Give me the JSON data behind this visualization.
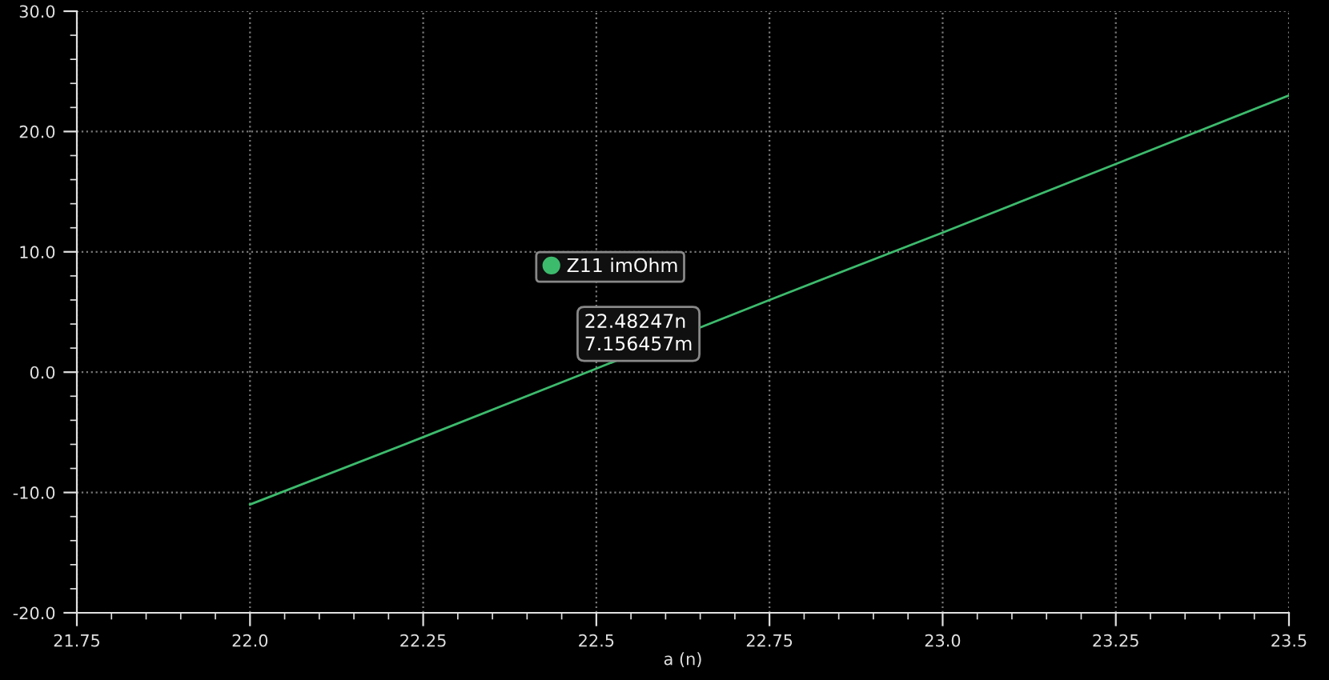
{
  "chart_data": {
    "type": "line",
    "xlabel": "a (n)",
    "x": [
      22.0,
      22.25,
      22.5,
      22.75,
      23.0,
      23.25,
      23.5
    ],
    "series": [
      {
        "name": "Z11 imOhm",
        "color": "#3dbb6d",
        "values": [
          -11.0,
          -5.4,
          0.3,
          6.0,
          11.6,
          17.3,
          23.0
        ]
      }
    ],
    "xlim": [
      21.75,
      23.5
    ],
    "xticks": [
      {
        "value": 21.75,
        "label": "21.75"
      },
      {
        "value": 22.0,
        "label": "22.0"
      },
      {
        "value": 22.25,
        "label": "22.25"
      },
      {
        "value": 22.5,
        "label": "22.5"
      },
      {
        "value": 22.75,
        "label": "22.75"
      },
      {
        "value": 23.0,
        "label": "23.0"
      },
      {
        "value": 23.25,
        "label": "23.25"
      },
      {
        "value": 23.5,
        "label": "23.5"
      }
    ],
    "ylim": [
      -20,
      30
    ],
    "yticks": [
      {
        "value": -20,
        "label": "-20.0"
      },
      {
        "value": -10,
        "label": "-10.0"
      },
      {
        "value": 0,
        "label": "0.0"
      },
      {
        "value": 10,
        "label": "10.0"
      },
      {
        "value": 20,
        "label": "20.0"
      },
      {
        "value": 30,
        "label": "30.0"
      }
    ],
    "grid": true,
    "legend": "center",
    "marker": "none",
    "line_style": "solid",
    "annotations": [
      {
        "text": "22.48247n\n7.156457m",
        "x": 22.48247,
        "y": 0.007156457
      }
    ]
  }
}
